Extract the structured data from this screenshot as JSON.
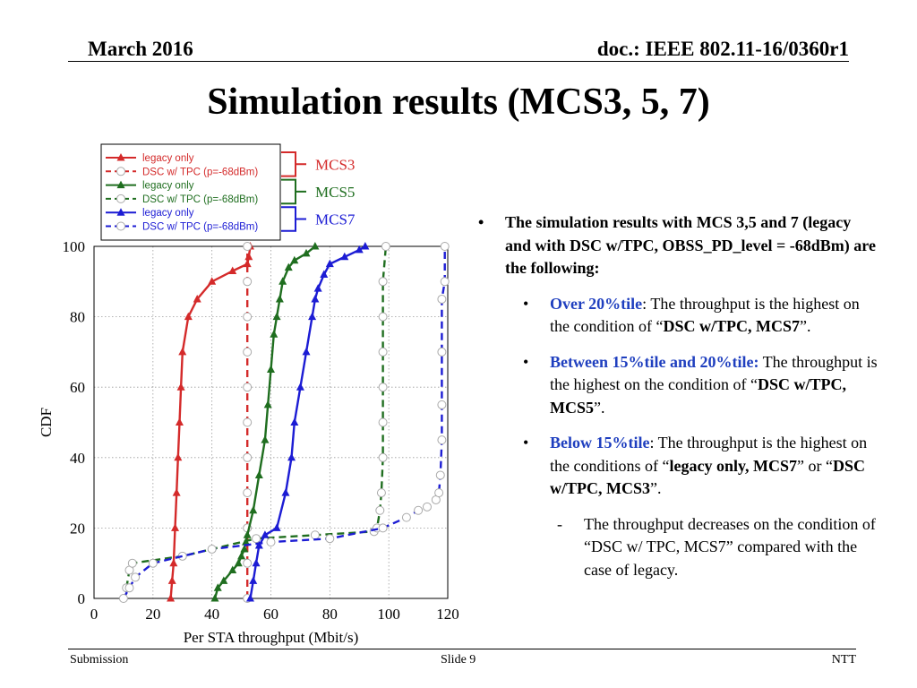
{
  "header": {
    "date": "March 2016",
    "doc": "doc.: IEEE 802.11-16/0360r1"
  },
  "title": "Simulation results (MCS3, 5, 7)",
  "chart_data": {
    "type": "line",
    "xlabel": "Per STA throughput (Mbit/s)",
    "ylabel": "CDF",
    "xlim": [
      0,
      120
    ],
    "ylim": [
      0,
      100
    ],
    "xticks": [
      "0",
      "20",
      "40",
      "60",
      "80",
      "100",
      "120"
    ],
    "yticks": [
      "0",
      "20",
      "40",
      "60",
      "80",
      "100"
    ],
    "grid": true,
    "legend_position": "top-left (above plot)",
    "series": [
      {
        "name": "legacy only",
        "group": "MCS3",
        "color": "#d42a2a",
        "style": "solid",
        "marker": "triangle",
        "x": [
          26,
          26.5,
          27,
          27.5,
          28,
          28.5,
          29,
          29.5,
          30,
          32,
          35,
          40,
          47,
          52,
          52.5,
          53
        ],
        "y": [
          0,
          5,
          10,
          20,
          30,
          40,
          50,
          60,
          70,
          80,
          85,
          90,
          93,
          95,
          97,
          100
        ]
      },
      {
        "name": "DSC w/ TPC (p=-68dBm)",
        "group": "MCS3",
        "color": "#d42a2a",
        "style": "dashed",
        "marker": "circle",
        "x": [
          52,
          52,
          52,
          52,
          52,
          52,
          52,
          52,
          52,
          52,
          52
        ],
        "y": [
          0,
          10,
          20,
          30,
          40,
          50,
          60,
          70,
          80,
          90,
          100
        ]
      },
      {
        "name": "legacy only",
        "group": "MCS5",
        "color": "#1f6e1f",
        "style": "solid",
        "marker": "triangle",
        "x": [
          41,
          42,
          44,
          47,
          49,
          50,
          51,
          51.5,
          52,
          54,
          56,
          58,
          59,
          60,
          61,
          62,
          63,
          64,
          66,
          68,
          72,
          75
        ],
        "y": [
          0,
          3,
          5,
          8,
          10,
          12,
          14,
          16,
          18,
          25,
          35,
          45,
          55,
          65,
          75,
          80,
          85,
          90,
          94,
          96,
          98,
          100
        ]
      },
      {
        "name": "DSC w/ TPC (p=-68dBm)",
        "group": "MCS5",
        "color": "#1f6e1f",
        "style": "dashed",
        "marker": "circle",
        "x": [
          11,
          12,
          13,
          30,
          55,
          75,
          95,
          96,
          97,
          97.5,
          98,
          98,
          98,
          98,
          98,
          98,
          99
        ],
        "y": [
          3,
          8,
          10,
          12,
          17,
          18,
          19,
          20,
          25,
          30,
          40,
          50,
          60,
          70,
          80,
          90,
          100
        ]
      },
      {
        "name": "legacy only",
        "group": "MCS7",
        "color": "#1c1cd4",
        "style": "solid",
        "marker": "triangle",
        "x": [
          53,
          54,
          55,
          56,
          58,
          62,
          65,
          67,
          68,
          70,
          72,
          74,
          75,
          76,
          78,
          80,
          85,
          90,
          92
        ],
        "y": [
          0,
          5,
          10,
          15,
          18,
          20,
          30,
          40,
          50,
          60,
          70,
          80,
          85,
          88,
          92,
          95,
          97,
          99,
          100
        ]
      },
      {
        "name": "DSC w/ TPC (p=-68dBm)",
        "group": "MCS7",
        "color": "#1c1cd4",
        "style": "dashed",
        "marker": "circle",
        "x": [
          10,
          12,
          14,
          20,
          40,
          60,
          80,
          98,
          106,
          110,
          113,
          116,
          117,
          117.5,
          118,
          118,
          118,
          118,
          119,
          119
        ],
        "y": [
          0,
          3,
          6,
          10,
          14,
          16,
          17,
          20,
          23,
          25,
          26,
          28,
          30,
          35,
          45,
          55,
          70,
          85,
          90,
          100
        ]
      }
    ],
    "group_labels": [
      "MCS3",
      "MCS5",
      "MCS7"
    ]
  },
  "bullets": {
    "main": "The simulation results with MCS 3,5 and 7 (legacy and with DSC w/TPC, OBSS_PD_level = -68dBm) are the following:",
    "items": [
      {
        "lead": "Over 20%tile",
        "sep": ":",
        "text": "  The throughput is the highest on the condition of “",
        "bold1": "DSC  w/TPC, MCS7",
        "tail1": "”.",
        "bold2": "",
        "tail2": ""
      },
      {
        "lead": "Between 15%tile and 20%tile:",
        "sep": "",
        "text": "  The throughput is the highest on the condition of “",
        "bold1": "DSC w/TPC, MCS5",
        "tail1": "”.",
        "bold2": "",
        "tail2": ""
      },
      {
        "lead": "Below 15%tile",
        "sep": ":",
        "text": "  The throughput is the highest on the conditions of “",
        "bold1": "legacy only, MCS7",
        "tail1": "” or “",
        "bold2": "DSC w/TPC,  MCS3",
        "tail2": "”."
      }
    ],
    "sub_dash": "-",
    "sub": "The throughput decreases on the condition of “DSC w/ TPC, MCS7” compared with the case of legacy."
  },
  "footer": {
    "left": "Submission",
    "center": "Slide 9",
    "right": "NTT"
  }
}
